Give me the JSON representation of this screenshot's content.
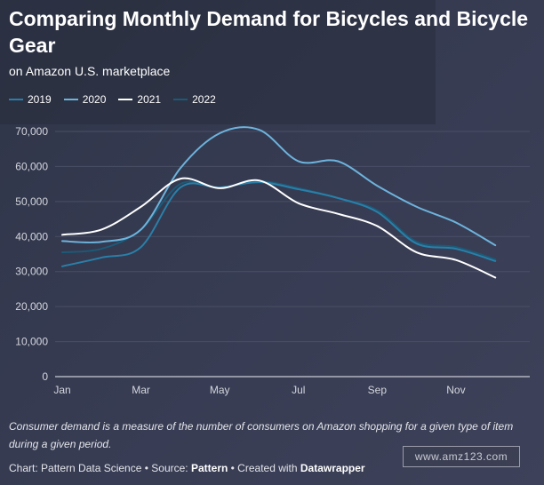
{
  "chart_data": {
    "type": "line",
    "title": "Comparing Monthly Demand for Bicycles and Bicycle Gear",
    "subtitle": "on Amazon U.S. marketplace",
    "x": [
      "Jan",
      "Feb",
      "Mar",
      "Apr",
      "May",
      "Jun",
      "Jul",
      "Aug",
      "Sep",
      "Oct",
      "Nov",
      "Dec"
    ],
    "x_tick_labels": [
      "Jan",
      "Mar",
      "May",
      "Jul",
      "Sep",
      "Nov"
    ],
    "y_tick_labels": [
      "0",
      "10,000",
      "20,000",
      "30,000",
      "40,000",
      "50,000",
      "60,000",
      "70,000"
    ],
    "ylim": [
      0,
      70000
    ],
    "grid": true,
    "legend_position": "top-left",
    "series": [
      {
        "name": "2019",
        "color": "#2a7fa8",
        "values": [
          31500,
          34000,
          37000,
          54000,
          54000,
          55500,
          53500,
          51000,
          47000,
          38000,
          36500,
          33000
        ]
      },
      {
        "name": "2020",
        "color": "#6db3dc",
        "values": [
          38700,
          38500,
          42000,
          59500,
          69500,
          70500,
          61500,
          61500,
          54500,
          48500,
          44000,
          37500
        ]
      },
      {
        "name": "2021",
        "color": "#ffffff",
        "values": [
          40500,
          42000,
          48500,
          56500,
          53800,
          56000,
          49500,
          46500,
          43000,
          35500,
          33300,
          28300
        ]
      },
      {
        "name": "2022",
        "color": "#1c5a77",
        "values": [
          35500,
          36500,
          42000,
          55000,
          54000,
          55800,
          53800,
          51000,
          47500,
          38500,
          37000,
          33500
        ]
      }
    ],
    "footnote": "Consumer demand is a measure of the number of consumers on Amazon shopping for a given type of item during a given period.",
    "credit": {
      "prefix": "Chart: Pattern Data Science • Source: ",
      "source": "Pattern",
      "middle": " • Created with ",
      "tool": "Datawrapper"
    },
    "watermark": "www.amz123.com"
  }
}
